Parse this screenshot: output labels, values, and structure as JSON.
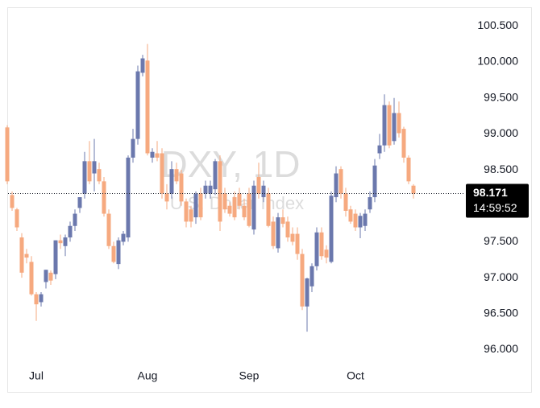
{
  "chart_data": {
    "type": "candlestick",
    "title": "DXY, 1D",
    "subtitle": "U.S. Dollar Index",
    "categories": [
      null,
      null,
      null,
      null,
      null,
      null,
      "Jul",
      null,
      null,
      null,
      null,
      null,
      null,
      null,
      null,
      null,
      null,
      null,
      null,
      null,
      null,
      null,
      null,
      null,
      null,
      null,
      null,
      null,
      null,
      "Aug",
      null,
      null,
      null,
      null,
      null,
      null,
      null,
      null,
      null,
      null,
      null,
      null,
      null,
      null,
      null,
      null,
      null,
      null,
      null,
      null,
      "Sep",
      null,
      null,
      null,
      null,
      null,
      null,
      null,
      null,
      null,
      null,
      null,
      null,
      null,
      null,
      null,
      null,
      null,
      null,
      null,
      null,
      null,
      "Oct",
      null,
      null,
      null,
      null,
      null,
      null,
      null,
      null,
      null,
      null,
      null,
      null
    ],
    "open": [
      99.09,
      98.15,
      97.95,
      97.56,
      97.33,
      97.22,
      96.77,
      96.66,
      96.94,
      97.07,
      97.05,
      97.52,
      97.44,
      97.56,
      97.72,
      97.97,
      98.17,
      98.62,
      98.45,
      98.51,
      98.34,
      97.89,
      97.44,
      97.19,
      97.5,
      97.56,
      98.67,
      98.93,
      99.85,
      100.02,
      98.67,
      98.73,
      98.73,
      98.17,
      98.17,
      98.51,
      98.45,
      98.06,
      97.95,
      97.84,
      98.17,
      98.17,
      98.17,
      98.23,
      98.62,
      98.17,
      98.0,
      98.12,
      98.17,
      98.0,
      98.17,
      97.67,
      98.4,
      98.12,
      98.17,
      97.78,
      97.41,
      97.84,
      97.78,
      97.61,
      97.61,
      97.33,
      96.6,
      96.88,
      97.16,
      97.63,
      97.39,
      97.22,
      98.12,
      98.51,
      98.17,
      97.95,
      97.89,
      97.7,
      97.72,
      97.95,
      98.12,
      98.73,
      98.84,
      99.4,
      98.9,
      99.29,
      99.07,
      98.67,
      98.28
    ],
    "high": [
      99.12,
      98.2,
      97.97,
      97.62,
      97.4,
      97.3,
      96.8,
      96.8,
      97.11,
      97.1,
      97.52,
      97.6,
      97.6,
      97.78,
      97.95,
      98.12,
      98.75,
      98.9,
      98.93,
      98.6,
      98.4,
      97.95,
      97.5,
      97.56,
      97.65,
      98.7,
      99.07,
      99.95,
      100.1,
      100.25,
      98.8,
      98.9,
      98.8,
      98.3,
      98.62,
      98.6,
      98.5,
      98.1,
      98.0,
      98.2,
      98.25,
      98.35,
      98.35,
      98.65,
      98.7,
      98.25,
      98.05,
      98.2,
      98.25,
      98.1,
      98.25,
      98.35,
      98.6,
      98.35,
      98.25,
      97.85,
      97.9,
      97.95,
      97.85,
      97.7,
      97.7,
      97.4,
      97.0,
      97.2,
      97.7,
      97.7,
      97.45,
      98.2,
      98.55,
      98.55,
      98.25,
      98.0,
      97.95,
      97.9,
      97.95,
      98.2,
      98.65,
      99.0,
      99.55,
      99.45,
      99.5,
      99.45,
      99.1,
      98.7,
      98.3
    ],
    "low": [
      98.3,
      97.93,
      97.65,
      97.0,
      97.2,
      96.75,
      96.4,
      96.6,
      96.85,
      96.9,
      96.98,
      97.4,
      97.3,
      97.5,
      97.65,
      97.9,
      98.1,
      98.3,
      98.2,
      98.3,
      97.85,
      97.4,
      97.2,
      97.12,
      97.45,
      97.5,
      98.6,
      98.85,
      99.8,
      98.7,
      98.6,
      98.62,
      98.1,
      97.95,
      98.1,
      98.3,
      98.0,
      97.7,
      97.7,
      97.75,
      97.8,
      98.1,
      98.1,
      98.15,
      97.65,
      97.9,
      97.85,
      97.8,
      97.95,
      97.8,
      97.7,
      97.6,
      98.1,
      98.05,
      97.7,
      97.4,
      97.35,
      97.7,
      97.5,
      97.45,
      97.25,
      96.55,
      96.25,
      96.8,
      97.1,
      97.25,
      97.2,
      97.2,
      98.05,
      98.1,
      97.85,
      97.75,
      97.65,
      97.55,
      97.65,
      97.9,
      98.05,
      98.65,
      98.75,
      98.8,
      98.85,
      98.95,
      98.6,
      98.3,
      98.1
    ],
    "close": [
      98.34,
      97.97,
      97.7,
      97.07,
      97.28,
      96.77,
      96.63,
      96.77,
      97.11,
      96.96,
      97.52,
      97.48,
      97.56,
      97.72,
      97.89,
      98.12,
      98.62,
      98.34,
      98.62,
      98.34,
      97.89,
      97.44,
      97.22,
      97.52,
      97.61,
      98.67,
      98.93,
      99.87,
      100.05,
      98.73,
      98.75,
      98.67,
      98.17,
      98.06,
      98.51,
      98.34,
      98.06,
      97.78,
      97.78,
      98.17,
      97.84,
      98.28,
      98.28,
      98.62,
      97.78,
      97.95,
      97.89,
      97.84,
      98.0,
      97.84,
      97.72,
      98.28,
      98.17,
      98.28,
      97.72,
      97.44,
      97.84,
      97.75,
      97.56,
      97.5,
      97.33,
      96.6,
      96.99,
      97.16,
      97.63,
      97.3,
      97.28,
      98.14,
      98.45,
      98.17,
      97.93,
      97.78,
      97.7,
      97.86,
      97.89,
      98.12,
      98.56,
      98.84,
      99.4,
      98.84,
      99.29,
      99.01,
      98.67,
      98.34,
      98.171
    ],
    "up_color": "#6b78ad",
    "down_color": "#f6a97f",
    "ylim": [
      95.77,
      100.75
    ],
    "yticks": [
      {
        "value": 96,
        "label": "96.000"
      },
      {
        "value": 96.5,
        "label": "96.500"
      },
      {
        "value": 97,
        "label": "97.000"
      },
      {
        "value": 97.5,
        "label": "97.500"
      },
      {
        "value": 98,
        "label": "98.000"
      },
      {
        "value": 98.5,
        "label": "98.500"
      },
      {
        "value": 99,
        "label": "99.000"
      },
      {
        "value": 99.5,
        "label": "99.500"
      },
      {
        "value": 100,
        "label": "100.000"
      },
      {
        "value": 100.5,
        "label": "100.500"
      }
    ],
    "last_price": 98.171,
    "countdown": "14:59:52"
  }
}
